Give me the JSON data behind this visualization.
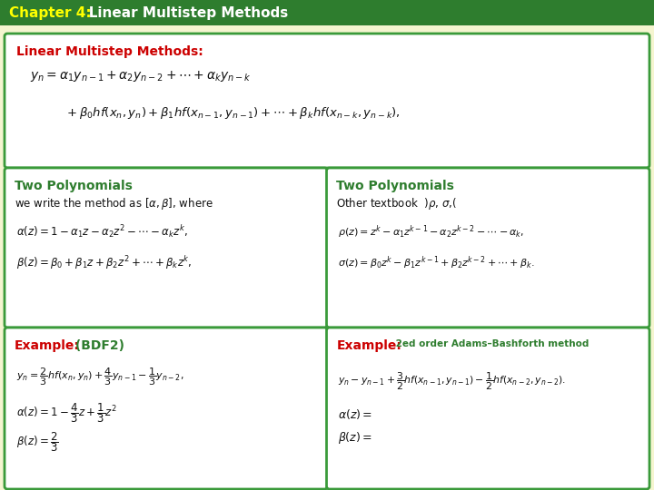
{
  "title_chapter": "Chapter 4:",
  "title_rest": "   Linear Multistep Methods",
  "title_bg": "#2e7d2e",
  "title_yellow": "#ffff00",
  "title_white": "#ffffff",
  "slide_bg": "#f5f5d0",
  "box_border": "#3a9a3a",
  "box_bg": "#ffffff",
  "header_red": "#cc0000",
  "header_green": "#2e7d2e",
  "text_black": "#111111",
  "top_box": {
    "title": "Linear Multistep Methods:",
    "eq1": "$y_n = \\alpha_1 y_{n-1} + \\alpha_2 y_{n-2} + \\cdots + \\alpha_k y_{n-k}$",
    "eq2": "$\\quad + \\beta_0 hf(x_n, y_n) + \\beta_1 hf(x_{n-1}, y_{n-1}) + \\cdots + \\beta_k hf(x_{n-k}, y_{n-k}),$"
  },
  "bl_poly": {
    "title": "Two Polynomials",
    "subtitle": "we write the method as $[\\alpha, \\beta]$, where",
    "eq1": "$\\alpha(z) = 1 - \\alpha_1 z - \\alpha_2 z^2 - \\cdots - \\alpha_k z^k,$",
    "eq2": "$\\beta(z) = \\beta_0 + \\beta_1 z + \\beta_2 z^2 + \\cdots + \\beta_k z^k,$"
  },
  "br_poly": {
    "title": "Two Polynomials",
    "subtitle": "Other textbook  )$\\rho$, $\\sigma$,(",
    "eq1": "$\\rho(z) = z^k - \\alpha_1 z^{k-1} - \\alpha_2 z^{k-2} - \\cdots - \\alpha_k,$",
    "eq2": "$\\sigma(z) = \\beta_0 z^k - \\beta_1 z^{k-1} + \\beta_2 z^{k-2} + \\cdots + \\beta_k.$"
  },
  "bl_ex": {
    "title_red": "Example:",
    "title_green": " (BDF2)",
    "eq1": "$y_n = \\dfrac{2}{3} hf(x_n, y_n) + \\dfrac{4}{3} y_{n-1} - \\dfrac{1}{3} y_{n-2},$",
    "eq2": "$\\alpha(z) = 1 - \\dfrac{4}{3} z + \\dfrac{1}{3} z^2$",
    "eq3": "$\\beta(z) = \\dfrac{2}{3}$"
  },
  "br_ex": {
    "title_red": "Example:",
    "title_green": " 2ed order Adams–Bashforth method",
    "eq1": "$y_n - y_{n-1} + \\dfrac{3}{2} hf(x_{n-1}, y_{n-1}) - \\dfrac{1}{2} hf(x_{n-2}, y_{n-2}).$",
    "eq2": "$\\alpha(z) = $",
    "eq3": "$\\beta(z) = $"
  }
}
